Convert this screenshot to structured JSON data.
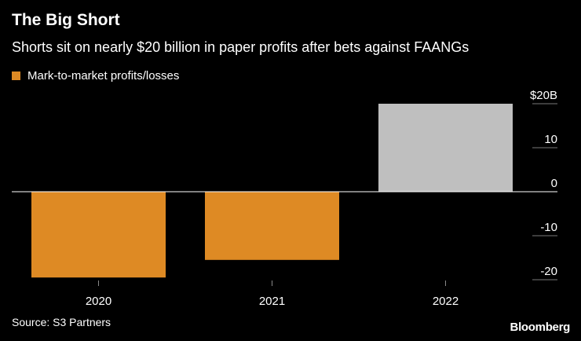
{
  "header": {
    "title": "The Big Short",
    "subtitle": "Shorts sit on nearly $20 billion in paper profits after bets against FAANGs"
  },
  "legend": {
    "label": "Mark-to-market profits/losses"
  },
  "footer": {
    "source": "Source: S3 Partners",
    "brand": "Bloomberg"
  },
  "colors": {
    "orange": "#de8a24",
    "gray": "#bfbfbf"
  },
  "chart_data": {
    "type": "bar",
    "title": "The Big Short",
    "categories": [
      "2020",
      "2021",
      "2022"
    ],
    "values": [
      -19.5,
      -15.5,
      20
    ],
    "bar_colors": [
      "orange",
      "orange",
      "gray"
    ],
    "ylim": [
      -20,
      20
    ],
    "ytick_values": [
      20,
      10,
      0,
      -10,
      -20
    ],
    "ytick_labels": [
      "$20B",
      "10",
      "0",
      "-10",
      "-20"
    ],
    "xlabel": "",
    "ylabel": "",
    "legend": [
      "Mark-to-market profits/losses"
    ],
    "legend_position": "top-left"
  }
}
